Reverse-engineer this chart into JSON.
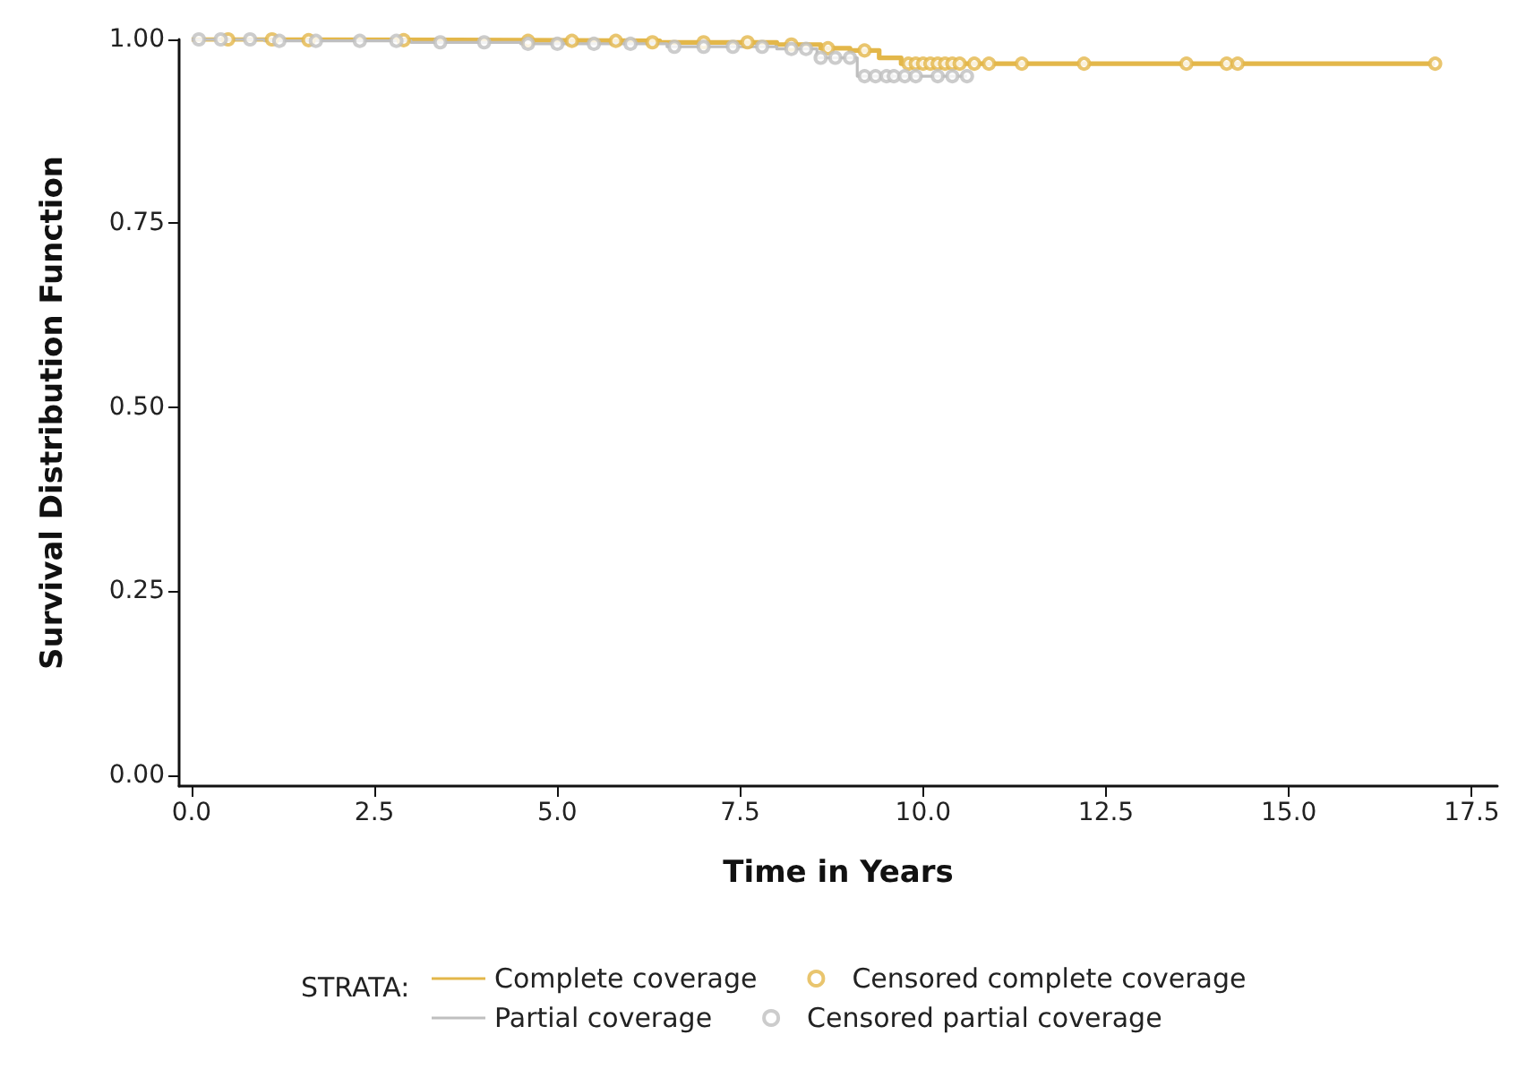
{
  "chart_data": {
    "type": "step",
    "xlabel": "Time in Years",
    "ylabel": "Survival Distribution Function",
    "legend_title": "STRATA:",
    "legend": "bottom",
    "grid": false,
    "xlim": [
      -0.17,
      17.85
    ],
    "ylim": [
      -0.015,
      1.0
    ],
    "xticks": [
      {
        "value": 0,
        "label": "0.0"
      },
      {
        "value": 2.5,
        "label": "2.5"
      },
      {
        "value": 5,
        "label": "5.0"
      },
      {
        "value": 7.5,
        "label": "7.5"
      },
      {
        "value": 10,
        "label": "10.0"
      },
      {
        "value": 12.5,
        "label": "12.5"
      },
      {
        "value": 15,
        "label": "15.0"
      },
      {
        "value": 17.5,
        "label": "17.5"
      }
    ],
    "yticks": [
      {
        "value": 0,
        "label": "0.00"
      },
      {
        "value": 0.25,
        "label": "0.25"
      },
      {
        "value": 0.5,
        "label": "0.50"
      },
      {
        "value": 0.75,
        "label": "0.75"
      },
      {
        "value": 1,
        "label": "1.00"
      }
    ],
    "series": [
      {
        "name": "Complete coverage",
        "color": "#e3b74a",
        "marker": "none",
        "x": [
          0,
          1.6,
          4.5,
          6.4,
          8.0,
          8.6,
          9.0,
          9.4,
          9.7,
          17.0
        ],
        "values": [
          1,
          0.999,
          0.998,
          0.996,
          0.993,
          0.988,
          0.985,
          0.975,
          0.967,
          0.967
        ]
      },
      {
        "name": "Partial coverage",
        "color": "#bfbfbf",
        "marker": "none",
        "x": [
          0,
          1.0,
          3.0,
          4.5,
          6.5,
          8.0,
          8.55,
          9.1,
          10.6
        ],
        "values": [
          1,
          0.998,
          0.996,
          0.994,
          0.99,
          0.987,
          0.975,
          0.95,
          0.95
        ]
      },
      {
        "name": "Censored complete coverage",
        "type": "scatter",
        "color": "#e3b74a",
        "marker": "circle",
        "x": [
          0.5,
          1.1,
          1.6,
          2.9,
          4.6,
          5.2,
          5.8,
          6.3,
          7.0,
          7.6,
          8.2,
          8.7,
          9.2,
          9.8,
          9.9,
          10.0,
          10.1,
          10.2,
          10.3,
          10.4,
          10.5,
          10.7,
          10.9,
          11.35,
          12.2,
          13.6,
          14.15,
          14.3,
          17.0
        ],
        "values": [
          1,
          1,
          0.999,
          0.999,
          0.998,
          0.998,
          0.998,
          0.996,
          0.996,
          0.996,
          0.993,
          0.988,
          0.985,
          0.967,
          0.967,
          0.967,
          0.967,
          0.967,
          0.967,
          0.967,
          0.967,
          0.967,
          0.967,
          0.967,
          0.967,
          0.967,
          0.967,
          0.967,
          0.967
        ]
      },
      {
        "name": "Censored partial coverage",
        "type": "scatter",
        "color": "#bfbfbf",
        "marker": "circle",
        "x": [
          0.1,
          0.4,
          0.8,
          1.2,
          1.7,
          2.3,
          2.8,
          3.4,
          4.0,
          4.6,
          5.0,
          5.5,
          6.0,
          6.6,
          7.0,
          7.4,
          7.8,
          8.2,
          8.4,
          8.6,
          8.8,
          9.0,
          9.2,
          9.35,
          9.5,
          9.6,
          9.75,
          9.9,
          10.2,
          10.4,
          10.6
        ],
        "values": [
          1,
          1,
          1,
          0.998,
          0.998,
          0.998,
          0.998,
          0.996,
          0.996,
          0.994,
          0.994,
          0.994,
          0.994,
          0.99,
          0.99,
          0.99,
          0.99,
          0.987,
          0.987,
          0.975,
          0.975,
          0.975,
          0.95,
          0.95,
          0.95,
          0.95,
          0.95,
          0.95,
          0.95,
          0.95,
          0.95
        ]
      }
    ]
  }
}
